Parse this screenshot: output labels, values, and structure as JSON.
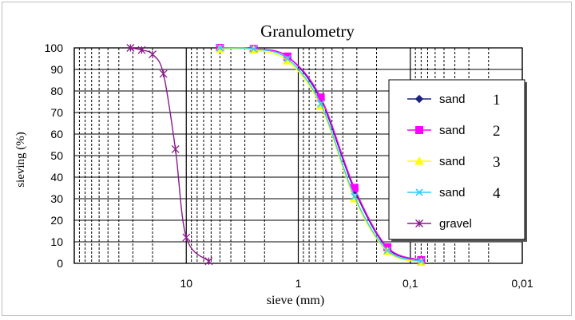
{
  "chart_data": {
    "type": "line",
    "title": "Granulometry",
    "xlabel": "sieve (mm)",
    "ylabel": "sieving (%)",
    "x_scale": "log",
    "x_reversed": true,
    "xlim": [
      100,
      0.01
    ],
    "ylim": [
      0,
      100
    ],
    "y_ticks": [
      0,
      10,
      20,
      30,
      40,
      50,
      60,
      70,
      80,
      90,
      100
    ],
    "y_tick_labels": [
      "0",
      "10",
      "20",
      "30",
      "40",
      "50",
      "60",
      "70",
      "80",
      "90",
      "100"
    ],
    "x_ticks": [
      10,
      1,
      0.1,
      0.01
    ],
    "x_tick_labels": [
      "10",
      "1",
      "0,1",
      "0,01"
    ],
    "grid": true,
    "legend_position": "right",
    "series": [
      {
        "name": "sand",
        "label_number": "1",
        "color": "#1a237e",
        "marker": "diamond",
        "x": [
          5,
          2.5,
          1.25,
          0.63,
          0.315,
          0.16,
          0.08
        ],
        "y": [
          100,
          99.5,
          96,
          76,
          34,
          7,
          1.5
        ]
      },
      {
        "name": "sand",
        "label_number": "2",
        "color": "#ff00ff",
        "marker": "square",
        "x": [
          5,
          2.5,
          1.25,
          0.63,
          0.315,
          0.16,
          0.08
        ],
        "y": [
          100,
          99.5,
          96,
          77,
          35,
          7.5,
          1.5
        ]
      },
      {
        "name": "sand",
        "label_number": "3",
        "color": "#ffff00",
        "marker": "triangle",
        "x": [
          5,
          2.5,
          1.25,
          0.63,
          0.315,
          0.16,
          0.08
        ],
        "y": [
          99.5,
          99,
          94,
          73,
          30,
          5.5,
          0.5
        ]
      },
      {
        "name": "sand",
        "label_number": "4",
        "color": "#33ccff",
        "marker": "x",
        "x": [
          5,
          2.5,
          1.25,
          0.63,
          0.315,
          0.16,
          0.08
        ],
        "y": [
          100,
          99.5,
          95,
          74,
          31,
          6,
          1
        ]
      },
      {
        "name": "gravel",
        "label_number": "",
        "color": "#8b1a8b",
        "marker": "star",
        "x": [
          31.5,
          25,
          20,
          16,
          12.5,
          10,
          6.3
        ],
        "y": [
          100,
          99,
          97,
          88,
          53,
          12,
          1
        ]
      }
    ]
  }
}
